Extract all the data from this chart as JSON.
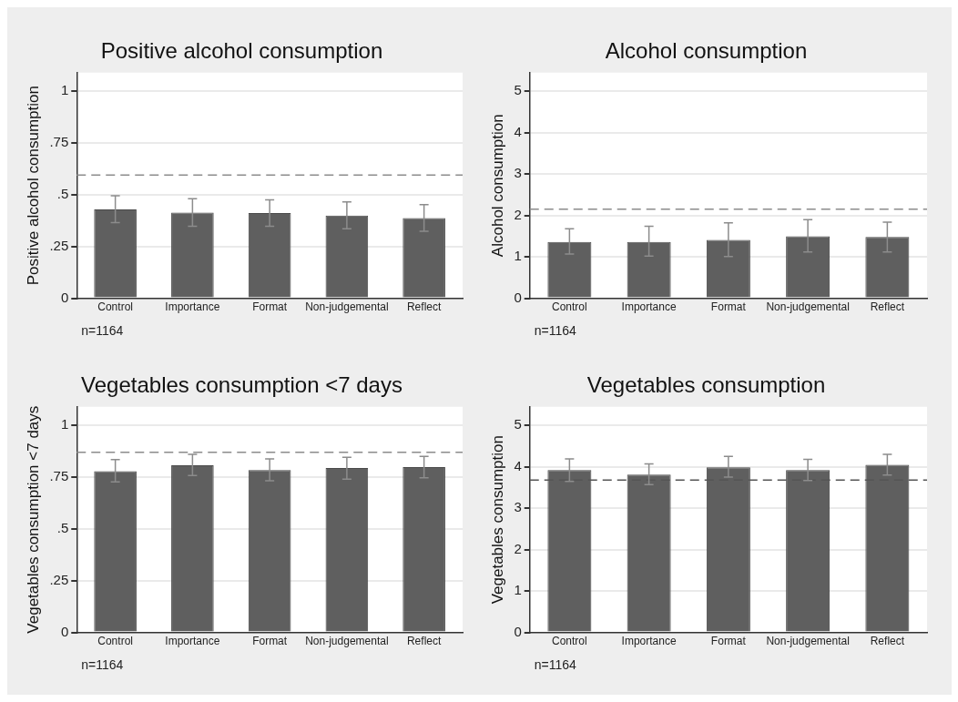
{
  "chart_data": [
    {
      "type": "bar",
      "title": "Positive alcohol consumption",
      "ylabel": "Positive alcohol consumption",
      "categories": [
        "Control",
        "Importance",
        "Format",
        "Non-judgemental",
        "Reflect"
      ],
      "values": [
        0.429,
        0.414,
        0.412,
        0.4,
        0.388
      ],
      "errors": [
        [
          0.366,
          0.495
        ],
        [
          0.348,
          0.481
        ],
        [
          0.348,
          0.476
        ],
        [
          0.336,
          0.466
        ],
        [
          0.324,
          0.452
        ]
      ],
      "color": "#5f5f5f",
      "ylim": [
        0,
        1.09
      ],
      "yticks": [
        0,
        {
          "value": 0.25,
          "label": ".25"
        },
        {
          "value": 0.5,
          "label": ".5"
        },
        {
          "value": 0.75,
          "label": ".75"
        },
        1
      ],
      "ref_lines": [
        {
          "axis": "y",
          "value": 0.595,
          "color": "#8c8c8c",
          "line_style": "dashed"
        }
      ],
      "grid": "y",
      "legend": false,
      "annotations": [
        "n=1164"
      ]
    },
    {
      "type": "bar",
      "title": "Alcohol consumption",
      "ylabel": "Alcohol consumption",
      "categories": [
        "Control",
        "Importance",
        "Format",
        "Non-judgemental",
        "Reflect"
      ],
      "values": [
        1.36,
        1.36,
        1.41,
        1.5,
        1.48
      ],
      "errors": [
        [
          1.07,
          1.68
        ],
        [
          1.02,
          1.74
        ],
        [
          1.01,
          1.82
        ],
        [
          1.12,
          1.9
        ],
        [
          1.12,
          1.84
        ]
      ],
      "color": "#5f5f5f",
      "ylim": [
        0,
        5.45
      ],
      "yticks": [
        0,
        1,
        2,
        3,
        4,
        5
      ],
      "ref_lines": [
        {
          "axis": "y",
          "value": 2.15,
          "color": "#8c8c8c",
          "line_style": "dashed"
        }
      ],
      "grid": "y",
      "legend": false,
      "annotations": [
        "n=1164"
      ]
    },
    {
      "type": "bar",
      "title": "Vegetables consumption <7 days",
      "ylabel": "Vegetables consumption <7 days",
      "categories": [
        "Control",
        "Importance",
        "Format",
        "Non-judgemental",
        "Reflect"
      ],
      "values": [
        0.779,
        0.808,
        0.785,
        0.794,
        0.799
      ],
      "errors": [
        [
          0.727,
          0.835
        ],
        [
          0.758,
          0.86
        ],
        [
          0.733,
          0.838
        ],
        [
          0.741,
          0.846
        ],
        [
          0.747,
          0.851
        ]
      ],
      "color": "#5f5f5f",
      "ylim": [
        0,
        1.09
      ],
      "yticks": [
        0,
        {
          "value": 0.25,
          "label": ".25"
        },
        {
          "value": 0.5,
          "label": ".5"
        },
        {
          "value": 0.75,
          "label": ".75"
        },
        1
      ],
      "ref_lines": [
        {
          "axis": "y",
          "value": 0.87,
          "color": "#8c8c8c",
          "line_style": "dashed"
        }
      ],
      "grid": "y",
      "legend": false,
      "annotations": [
        "n=1164"
      ]
    },
    {
      "type": "bar",
      "title": "Vegetables consumption",
      "ylabel": "Vegetables consumption",
      "categories": [
        "Control",
        "Importance",
        "Format",
        "Non-judgemental",
        "Reflect"
      ],
      "values": [
        3.92,
        3.81,
        3.99,
        3.92,
        4.05
      ],
      "errors": [
        [
          3.65,
          4.19
        ],
        [
          3.57,
          4.07
        ],
        [
          3.75,
          4.25
        ],
        [
          3.67,
          4.18
        ],
        [
          3.8,
          4.3
        ]
      ],
      "color": "#5f5f5f",
      "ylim": [
        0,
        5.45
      ],
      "yticks": [
        0,
        1,
        2,
        3,
        4,
        5
      ],
      "ref_lines": [
        {
          "axis": "y",
          "value": 3.68,
          "color": "#555555",
          "line_style": "dashed"
        }
      ],
      "grid": "y",
      "legend": false,
      "annotations": [
        "n=1164"
      ]
    }
  ]
}
